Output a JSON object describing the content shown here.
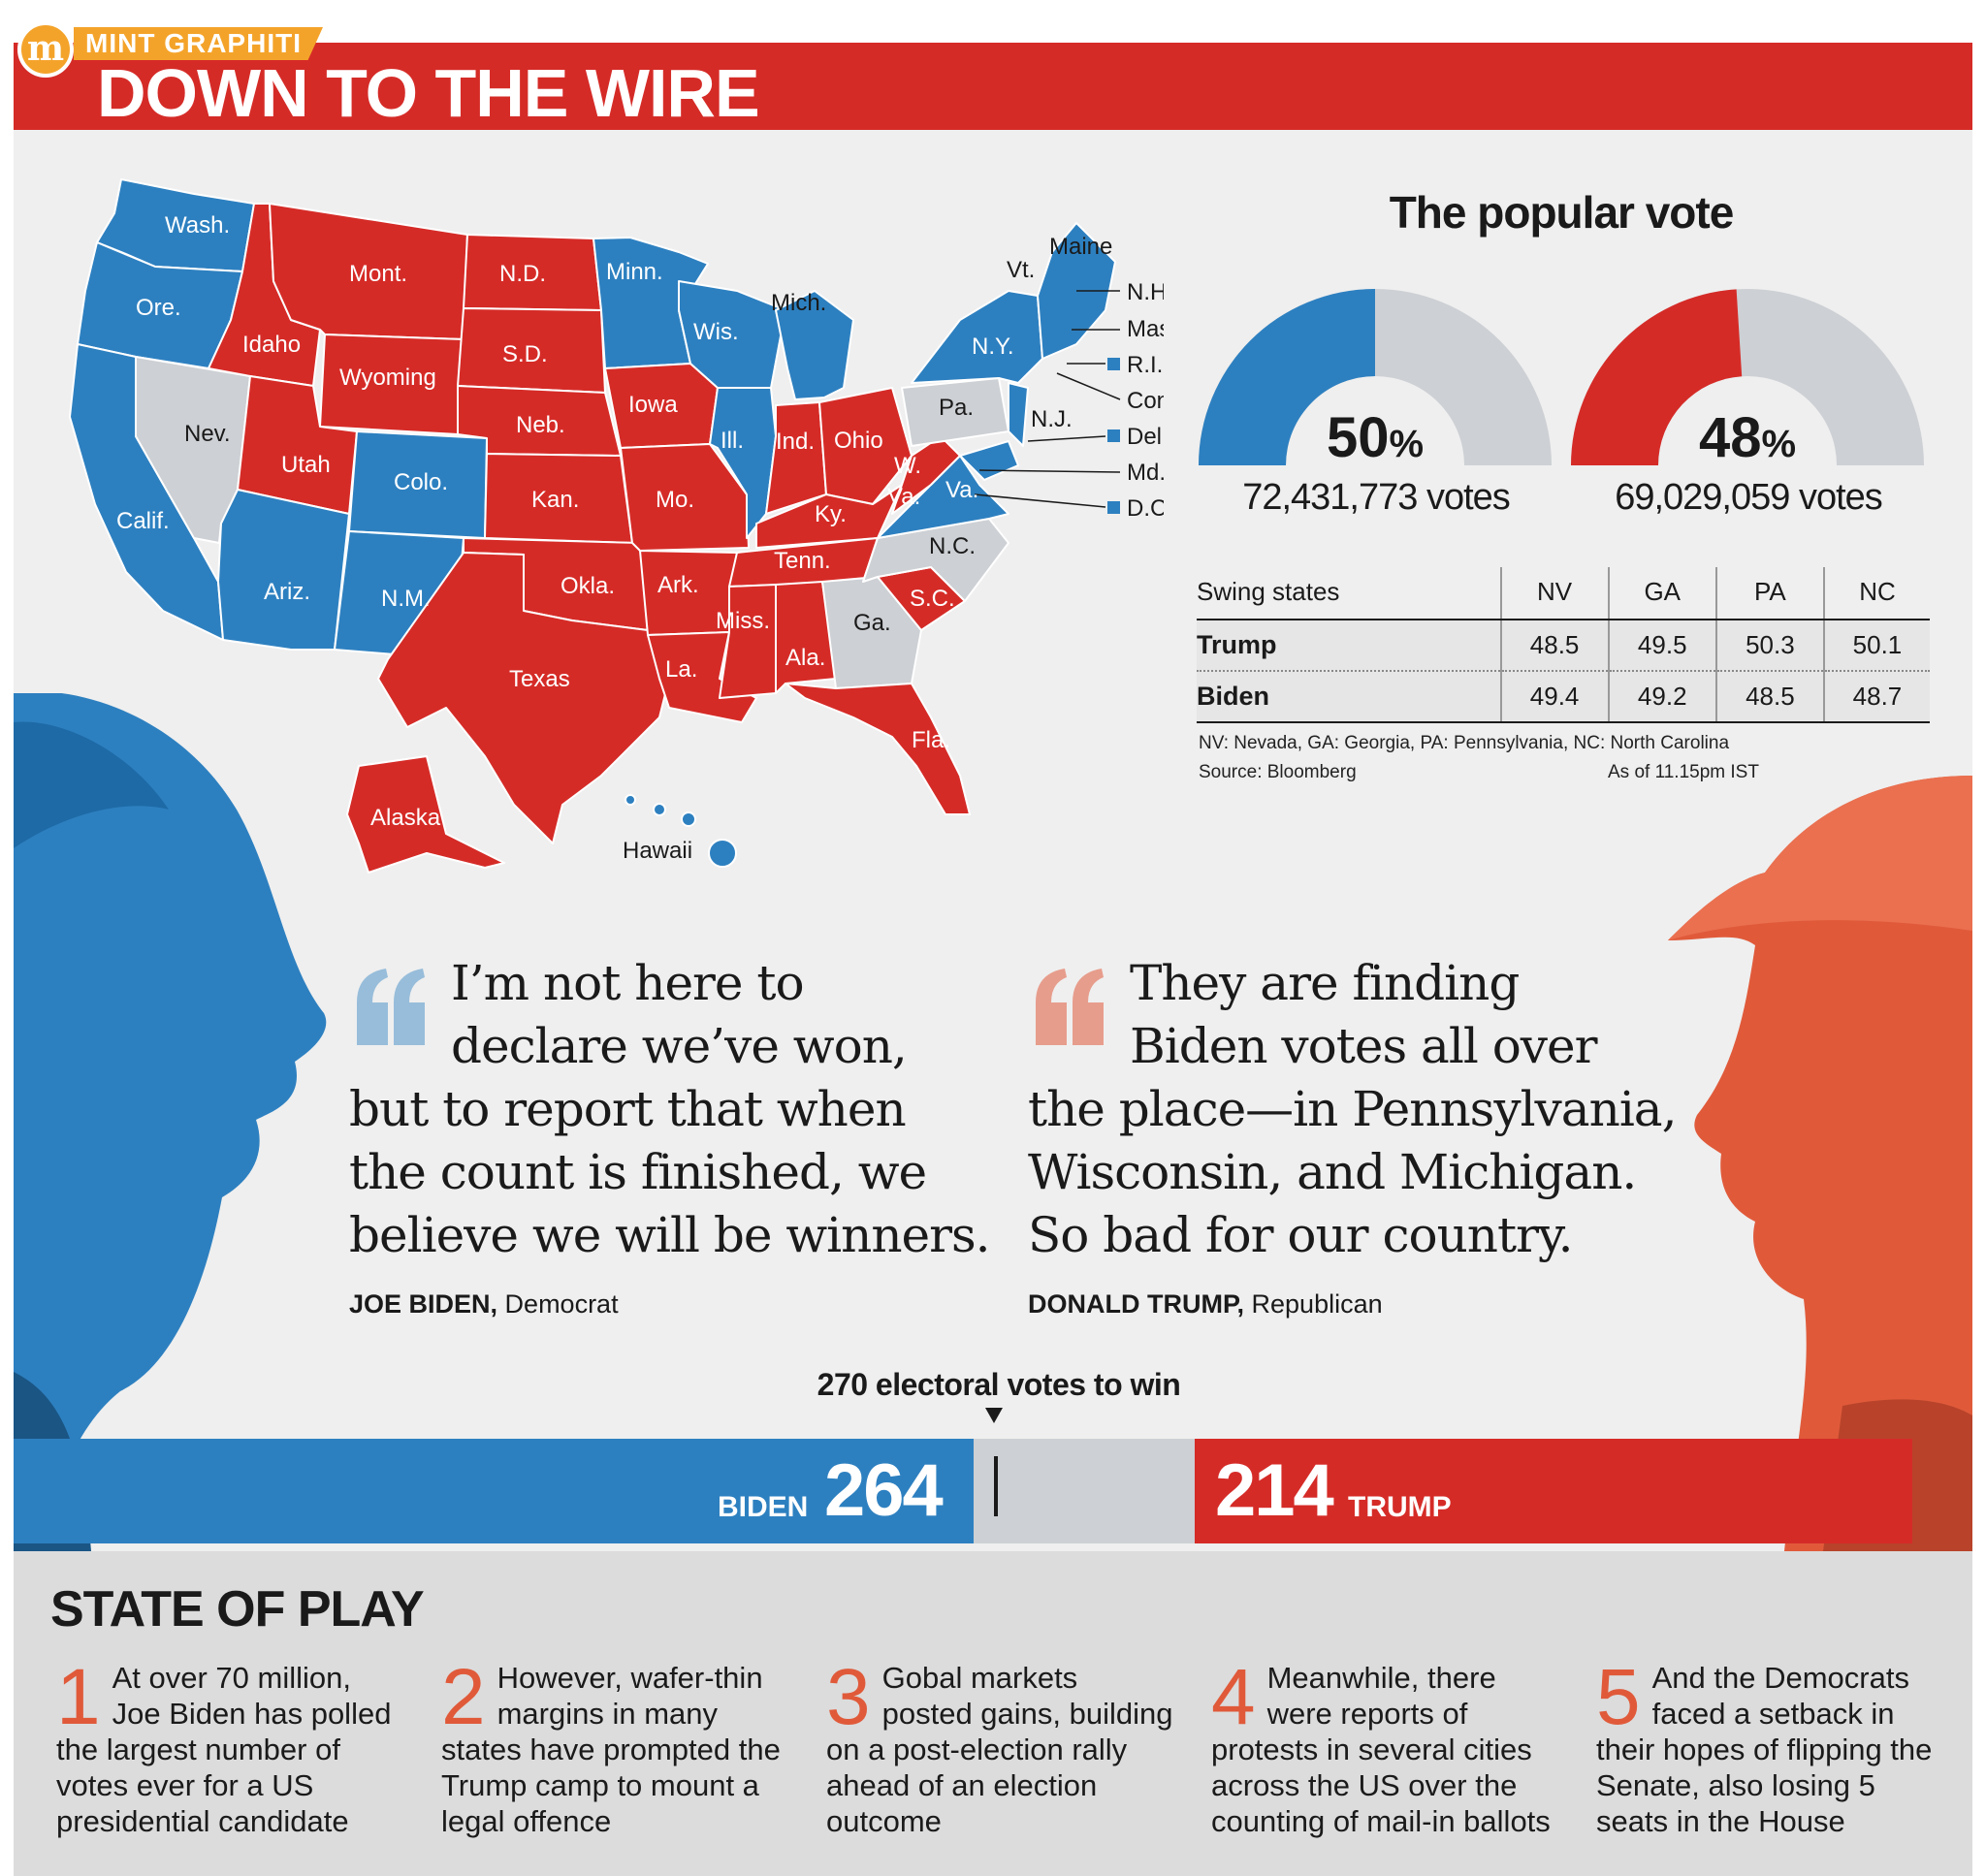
{
  "header": {
    "logo_letter": "m",
    "brand": "MINT GRAPHITI",
    "title": "DOWN TO THE WIRE"
  },
  "colors": {
    "democrat_blue": "#2d80c0",
    "republican_red": "#d52b27",
    "undecided_gray": "#cdd0d4",
    "accent_orange": "#f4a32a"
  },
  "map": {
    "labels": {
      "wash": "Wash.",
      "ore": "Ore.",
      "calif": "Calif.",
      "nev": "Nev.",
      "idaho": "Idaho",
      "mont": "Mont.",
      "wyoming": "Wyoming",
      "utah": "Utah",
      "ariz": "Ariz.",
      "colo": "Colo.",
      "nm": "N.M.",
      "nd": "N.D.",
      "sd": "S.D.",
      "neb": "Neb.",
      "kan": "Kan.",
      "okla": "Okla.",
      "texas": "Texas",
      "minn": "Minn.",
      "iowa": "Iowa",
      "mo": "Mo.",
      "ark": "Ark.",
      "la": "La.",
      "wis": "Wis.",
      "ill": "Ill.",
      "mich": "Mich.",
      "ind": "Ind.",
      "ohio": "Ohio",
      "ky": "Ky.",
      "tenn": "Tenn.",
      "miss": "Miss.",
      "ala": "Ala.",
      "ga": "Ga.",
      "fla": "Fla.",
      "sc": "S.C.",
      "nc": "N.C.",
      "va": "Va.",
      "wva1": "W.",
      "wva2": "Va.",
      "pa": "Pa.",
      "ny": "N.Y.",
      "nj": "N.J.",
      "vt": "Vt.",
      "maine": "Maine",
      "alaska": "Alaska",
      "hawaii": "Hawaii",
      "nh": "N.H.",
      "mass": "Mass.",
      "ri": "R.I.",
      "conn": "Conn.",
      "del": "Del.",
      "md": "Md.",
      "dc": "D.C."
    }
  },
  "popular_vote": {
    "title": "The popular vote",
    "biden": {
      "percent": "50",
      "percent_sign": "%",
      "share": 0.5,
      "votes": "72,431,773 votes"
    },
    "trump": {
      "percent": "48",
      "percent_sign": "%",
      "share": 0.48,
      "votes": "69,029,059 votes"
    }
  },
  "swing_table": {
    "headers": [
      "Swing states",
      "NV",
      "GA",
      "PA",
      "NC"
    ],
    "rows": [
      {
        "name": "Trump",
        "values": [
          "48.5",
          "49.5",
          "50.3",
          "50.1"
        ]
      },
      {
        "name": "Biden",
        "values": [
          "49.4",
          "49.2",
          "48.5",
          "48.7"
        ]
      }
    ],
    "footnote": "NV: Nevada, GA: Georgia, PA: Pennsylvania, NC: North Carolina",
    "source": "Source: Bloomberg",
    "as_of": "As of 11.15pm IST"
  },
  "quotes": {
    "biden": {
      "lines": [
        "I’m not here to",
        "declare we’ve won,",
        "but to report that when",
        "the count is finished, we",
        "believe we will be winners."
      ],
      "name": "JOE BIDEN,",
      "party": " Democrat"
    },
    "trump": {
      "lines": [
        "They are finding",
        "Biden votes all over",
        "the place—in Pennsylvania,",
        "Wisconsin, and Michigan.",
        "So bad for our country."
      ],
      "name": "DONALD TRUMP,",
      "party": " Republican"
    }
  },
  "electoral": {
    "threshold_label": "270 electoral votes to win",
    "biden_label": "BIDEN",
    "biden_votes": "264",
    "trump_votes": "214",
    "trump_label": "TRUMP"
  },
  "state_of_play": {
    "title": "STATE OF PLAY",
    "items": [
      {
        "num": "1",
        "text": "At over 70 million, Joe Biden has polled the largest number of votes ever for a US presidential candidate"
      },
      {
        "num": "2",
        "text": "However, wafer-thin margins in many states have prompted the Trump camp to mount a legal offence"
      },
      {
        "num": "3",
        "text": "Gobal markets posted gains, building on a post-election rally ahead of an election outcome"
      },
      {
        "num": "4",
        "text": "Meanwhile, there were reports of protests in several cities across the US over the counting of mail-in ballots"
      },
      {
        "num": "5",
        "text": "And the Democrats faced a setback in their hopes of flipping the Senate, also losing 5 seats in the House"
      }
    ]
  }
}
